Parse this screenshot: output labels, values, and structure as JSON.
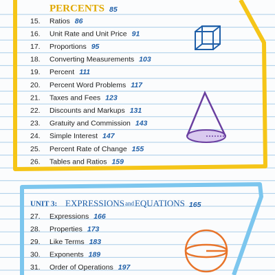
{
  "unit2": {
    "title": "PERCENTS",
    "page": "85",
    "entries": [
      {
        "number": "15.",
        "title": "Ratios",
        "page": "86"
      },
      {
        "number": "16.",
        "title": "Unit Rate and Unit Price",
        "page": "91"
      },
      {
        "number": "17.",
        "title": "Proportions",
        "page": "95"
      },
      {
        "number": "18.",
        "title": "Converting Measurements",
        "page": "103"
      },
      {
        "number": "19.",
        "title": "Percent",
        "page": "111"
      },
      {
        "number": "20.",
        "title": "Percent Word Problems",
        "page": "117"
      },
      {
        "number": "21.",
        "title": "Taxes and Fees",
        "page": "123"
      },
      {
        "number": "22.",
        "title": "Discounts and Markups",
        "page": "131"
      },
      {
        "number": "23.",
        "title": "Gratuity and Commission",
        "page": "143"
      },
      {
        "number": "24.",
        "title": "Simple Interest",
        "page": "147"
      },
      {
        "number": "25.",
        "title": "Percent Rate of Change",
        "page": "155"
      },
      {
        "number": "26.",
        "title": "Tables and Ratios",
        "page": "159"
      }
    ]
  },
  "unit3": {
    "label": "UNIT 3:",
    "title_start": "EXPRESSIONS",
    "title_join": "and",
    "title_end": "EQUATIONS",
    "page": "165",
    "entries": [
      {
        "number": "27.",
        "title": "Expressions",
        "page": "166"
      },
      {
        "number": "28.",
        "title": "Properties",
        "page": "173"
      },
      {
        "number": "29.",
        "title": "Like Terms",
        "page": "183"
      },
      {
        "number": "30.",
        "title": "Exponents",
        "page": "189"
      },
      {
        "number": "31.",
        "title": "Order of Operations",
        "page": "197"
      }
    ]
  }
}
